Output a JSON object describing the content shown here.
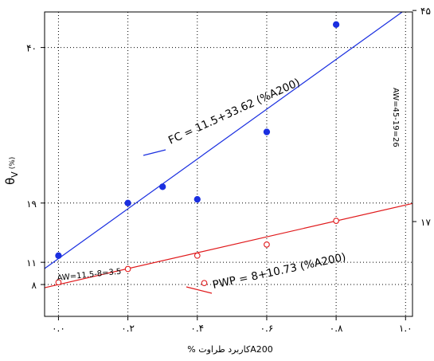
{
  "chart_data": {
    "type": "scatter",
    "xlabel": "% کاربرد طراوتA200",
    "ylabel": "θ",
    "ylabel_sub": "V",
    "ylabel_unit": "(%)",
    "xlim": [
      -0.04,
      1.02
    ],
    "ylim": [
      3.7,
      44.8
    ],
    "x_ticks": [
      0.0,
      0.2,
      0.4,
      0.6,
      0.8,
      1.0
    ],
    "x_tick_labels": [
      "۰.۰",
      "۰.۲",
      "۰.۴",
      "۰.۶",
      "۰.۸",
      "۱.۰"
    ],
    "y_ticks_left": [
      8,
      11,
      19,
      40
    ],
    "y_tick_labels_left": [
      "۸",
      "۱۱",
      "۱۹",
      "۴۰"
    ],
    "y_ticks_right": [
      16.5,
      45
    ],
    "y_tick_labels_right": [
      "۱۷",
      "۴۵"
    ],
    "grid": true,
    "series": [
      {
        "name": "FC",
        "color": "#1a2fe0",
        "marker": "filled-circle",
        "x": [
          0.0,
          0.2,
          0.3,
          0.4,
          0.6,
          0.8
        ],
        "y": [
          11.9,
          19.0,
          21.2,
          19.5,
          28.6,
          43.1
        ],
        "fit_line": {
          "intercept": 11.5,
          "slope": 33.62
        },
        "equation": "FC = 11.5+33.62 (%A200)"
      },
      {
        "name": "PWP",
        "color": "#e0191b",
        "marker": "open-circle",
        "x": [
          0.0,
          0.2,
          0.4,
          0.42,
          0.6,
          0.8
        ],
        "y": [
          8.3,
          10.1,
          11.9,
          8.2,
          13.4,
          16.6
        ],
        "fit_line": {
          "intercept": 8,
          "slope": 10.73
        },
        "equation": "PWP = 8+10.73 (%A200)"
      }
    ],
    "annotations": {
      "aw_left": "AW=11.5-8=3.5",
      "aw_right": "AW=45-19=26"
    }
  }
}
